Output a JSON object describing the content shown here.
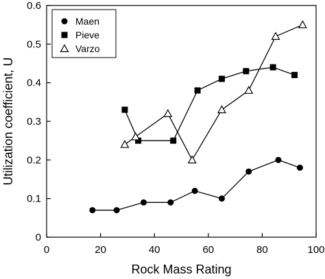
{
  "chart_data": {
    "type": "line",
    "xlabel": "Rock Mass Rating",
    "ylabel": "Utilization coefficient, U",
    "xlim": [
      0,
      100
    ],
    "ylim": [
      0,
      0.6
    ],
    "xticks": [
      0,
      20,
      40,
      60,
      80,
      100
    ],
    "yticks": [
      0,
      0.1,
      0.2,
      0.3,
      0.4,
      0.5,
      0.6
    ],
    "xtick_labels": [
      "0",
      "20",
      "40",
      "60",
      "80",
      "100"
    ],
    "ytick_labels": [
      "0",
      "0.1",
      "0.2",
      "0.3",
      "0.4",
      "0.5",
      "0.6"
    ],
    "grid": false,
    "legend_position": "top-left",
    "series": [
      {
        "name": "Maen",
        "marker": "filled-circle",
        "x": [
          17,
          26,
          36,
          46,
          55,
          65,
          75,
          86,
          94
        ],
        "y": [
          0.07,
          0.07,
          0.09,
          0.09,
          0.12,
          0.1,
          0.17,
          0.2,
          0.18
        ]
      },
      {
        "name": "Pieve",
        "marker": "filled-square",
        "x": [
          29,
          34,
          47,
          56,
          65,
          74,
          84,
          92
        ],
        "y": [
          0.33,
          0.25,
          0.25,
          0.38,
          0.41,
          0.43,
          0.44,
          0.42
        ]
      },
      {
        "name": "Varzo",
        "marker": "open-triangle",
        "x": [
          29,
          33,
          45,
          54,
          65,
          75,
          85,
          95
        ],
        "y": [
          0.24,
          0.26,
          0.32,
          0.2,
          0.33,
          0.38,
          0.52,
          0.55
        ]
      }
    ]
  }
}
